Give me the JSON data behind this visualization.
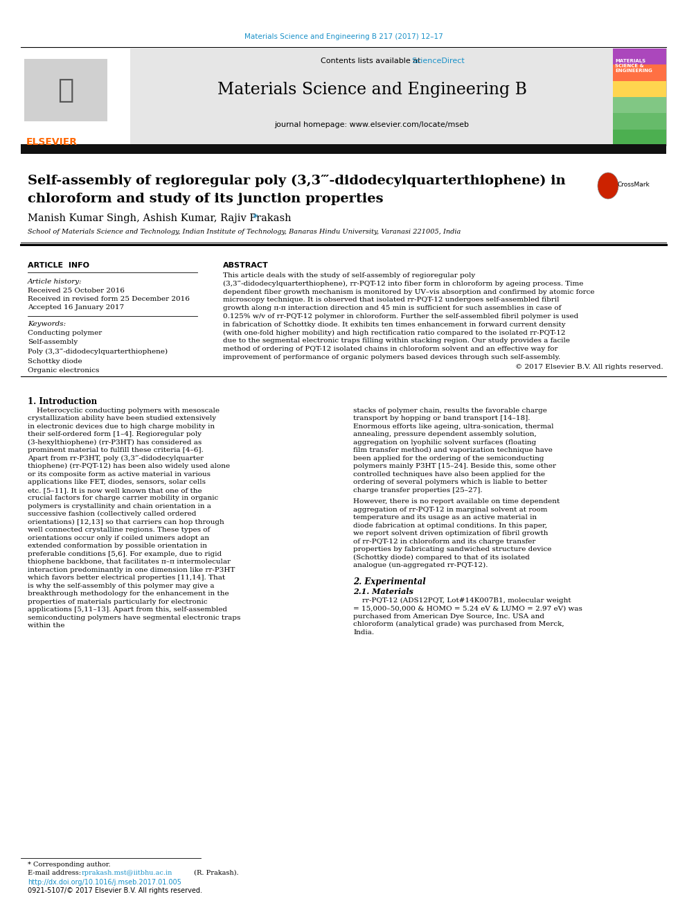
{
  "journal_ref": "Materials Science and Engineering B 217 (2017) 12–17",
  "journal_name": "Materials Science and Engineering B",
  "journal_homepage": "journal homepage: www.elsevier.com/locate/mseb",
  "contents_line_plain": "Contents lists available at ",
  "contents_line_link": "ScienceDirect",
  "paper_title_line1": "Self-assembly of regioregular poly (3,3‴-didodecylquarterthiophene) in",
  "paper_title_line2": "chloroform and study of its junction properties",
  "authors_plain": "Manish Kumar Singh, Ashish Kumar, Rajiv Prakash",
  "affiliation": "School of Materials Science and Technology, Indian Institute of Technology, Banaras Hindu University, Varanasi 221005, India",
  "article_info_header": "ARTICLE  INFO",
  "abstract_header": "ABSTRACT",
  "article_history_label": "Article history:",
  "received": "Received 25 October 2016",
  "received_revised": "Received in revised form 25 December 2016",
  "accepted": "Accepted 16 January 2017",
  "keywords_label": "Keywords:",
  "keywords": [
    "Conducting polymer",
    "Self-assembly",
    "Poly (3,3‴-didodecylquarterthiophene)",
    "Schottky diode",
    "Organic electronics"
  ],
  "abstract_text": "This article deals with the study of self-assembly of regioregular poly (3,3‴-didodecylquarterthiophene), rr-PQT-12 into fiber form in chloroform by ageing process. Time dependent fiber growth mechanism is monitored by UV–vis absorption and confirmed by atomic force microscopy technique. It is observed that isolated rr-PQT-12 undergoes self-assembled fibril growth along π-π interaction direction and 45 min is sufficient for such assemblies in case of 0.125% w/v of rr-PQT-12 polymer in chloroform. Further the self-assembled fibril polymer is used in fabrication of Schottky diode. It exhibits ten times enhancement in forward current density (with one-fold higher mobility) and high rectification ratio compared to the isolated rr-PQT-12 due to the segmental electronic traps filling within stacking region. Our study provides a facile method of ordering of PQT-12 isolated chains in chloroform solvent and an effective way for improvement of performance of organic polymers based devices through such self-assembly.",
  "copyright": "© 2017 Elsevier B.V. All rights reserved.",
  "intro_header": "1. Introduction",
  "intro_col1": "    Heterocyclic conducting polymers with mesoscale crystallization ability have been studied extensively in electronic devices due to high charge mobility in their self-ordered form [1–4]. Regioregular poly (3-hexylthiophene) (rr-P3HT) has considered as prominent material to fulfill these criteria [4–6]. Apart from rr-P3HT, poly (3,3‴-didodecylquarter thiophene) (rr-PQT-12) has been also widely used alone or its composite form as active material in various applications like FET, diodes, sensors, solar cells etc. [5–11]. It is now well known that one of the crucial factors for charge carrier mobility in organic polymers is crystallinity and chain orientation in a successive fashion (collectively called ordered orientations) [12,13] so that carriers can hop through well connected crystalline regions. These types of orientations occur only if coiled unimers adopt an extended conformation by possible orientation in preferable conditions [5,6]. For example, due to rigid thiophene backbone, that facilitates π–π intermolecular interaction predominantly in one dimension like rr-P3HT which favors better electrical properties [11,14]. That is why the self-assembly of this polymer may give a breakthrough methodology for the enhancement in the properties of materials particularly for electronic applications [5,11–13]. Apart from this, self-assembled semiconducting polymers have segmental electronic traps within the",
  "intro_col2": "stacks of polymer chain, results the favorable charge transport by hopping or band transport [14–18]. Enormous efforts like ageing, ultra-sonication, thermal annealing, pressure dependent assembly solution, aggregation on lyophilic solvent surfaces (floating film transfer method) and vaporization technique have been applied for the ordering of the semiconducting polymers mainly P3HT [15–24]. Beside this, some other controlled techniques have also been applied for the ordering of several polymers which is liable to better charge transfer properties [25–27].\n    However, there is no report available on time dependent aggregation of rr-PQT-12 in marginal solvent at room temperature and its usage as an active material in diode fabrication at optimal conditions. In this paper, we report solvent driven optimization of fibril growth of rr-PQT-12 in chloroform and its charge transfer properties by fabricating sandwiched structure device (Schottky diode) compared to that of its isolated analogue (un-aggregated rr-PQT-12).",
  "section2_header": "2. Experimental",
  "section21_header": "2.1. Materials",
  "materials_text": "    rr-PQT-12 (ADS12PQT, Lot#14K007B1, molecular weight = 15,000–50,000 & HOMO = 5.24 eV & LUMO = 2.97 eV) was purchased from American Dye Source, Inc. USA and chloroform (analytical grade) was purchased from Merck, India.",
  "footnote_star": "* Corresponding author.",
  "footnote_email_plain": "E-mail address: ",
  "footnote_email_link": "rprakash.mst@iitbhu.ac.in",
  "footnote_email_end": " (R. Prakash).",
  "doi": "http://dx.doi.org/10.1016/j.mseb.2017.01.005",
  "issn": "0921-5107/© 2017 Elsevier B.V. All rights reserved.",
  "color_elsevier_orange": "#FF6600",
  "color_sciencedirect_blue": "#1890C8",
  "color_header_bg": "#E6E6E6",
  "color_black_bar": "#111111",
  "color_ref_blue": "#1890C8",
  "color_text": "#000000",
  "color_white": "#FFFFFF",
  "cover_colors": [
    "#4CAF50",
    "#66BB6A",
    "#81C784",
    "#FFD54F",
    "#FF7043",
    "#AB47BC"
  ],
  "cover_text_lines": [
    "MATERIALS",
    "SCIENCE &",
    "ENGINEERING"
  ],
  "elsevier_color": "#FF6600"
}
